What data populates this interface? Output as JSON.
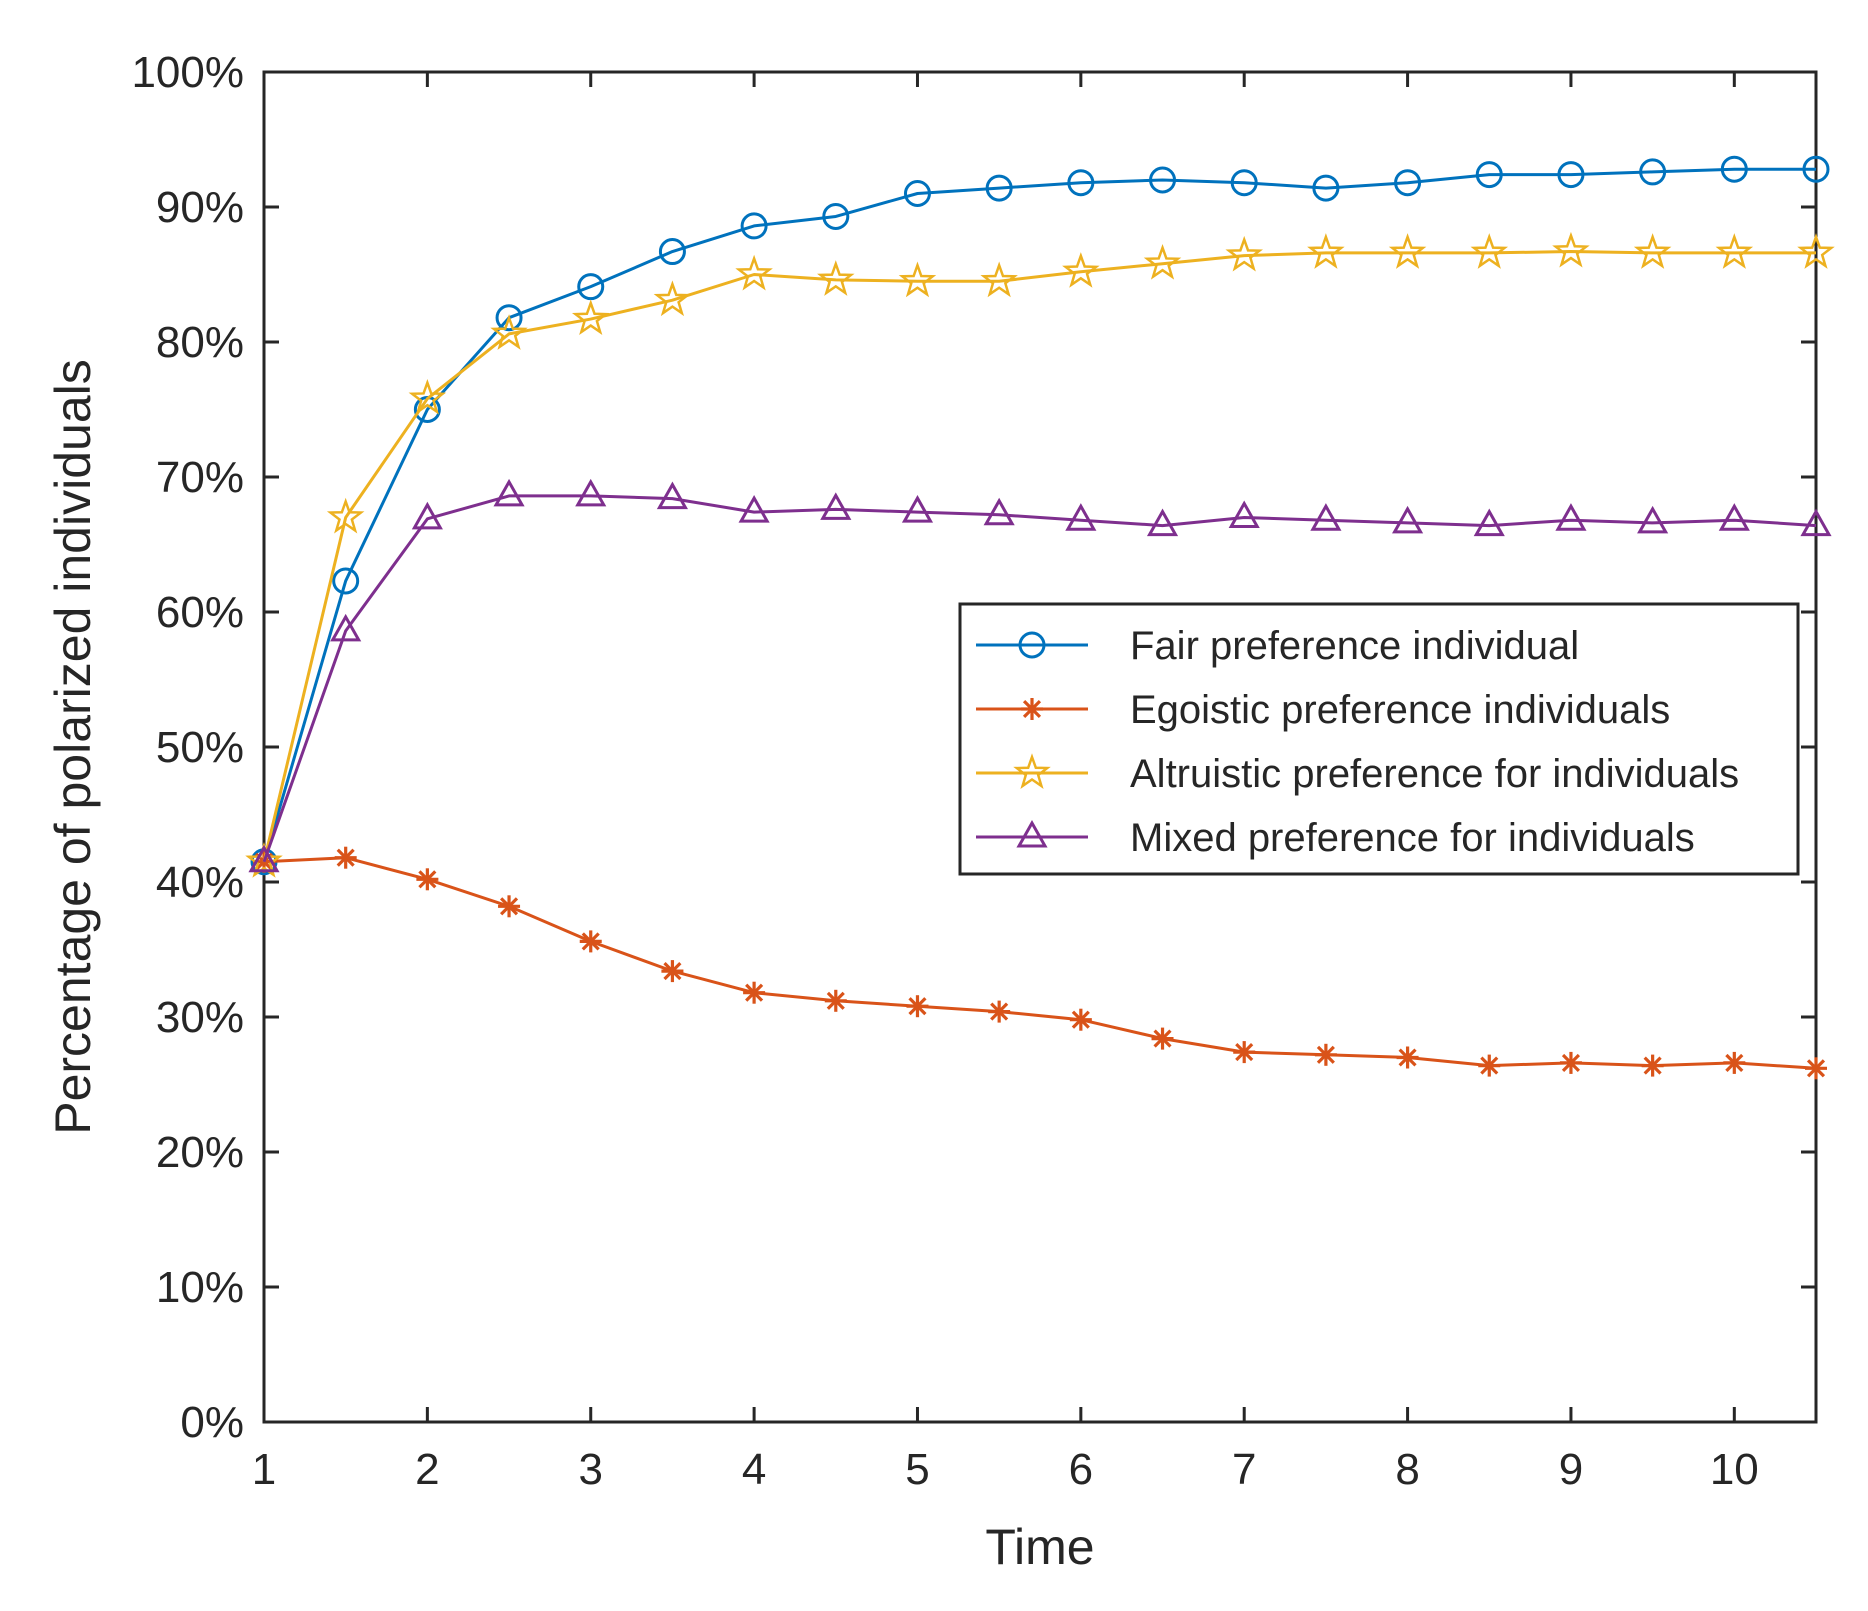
{
  "chart_data": {
    "type": "line",
    "title": "",
    "xlabel": "Time",
    "ylabel": "Percentage of polarized individuals",
    "xlim": [
      1,
      10.5
    ],
    "ylim": [
      0,
      100
    ],
    "xticks": [
      1,
      2,
      3,
      4,
      5,
      6,
      7,
      8,
      9,
      10
    ],
    "xtick_labels": [
      "1",
      "2",
      "3",
      "4",
      "5",
      "6",
      "7",
      "8",
      "9",
      "10"
    ],
    "yticks": [
      0,
      10,
      20,
      30,
      40,
      50,
      60,
      70,
      80,
      90,
      100
    ],
    "ytick_labels": [
      "0%",
      "10%",
      "20%",
      "30%",
      "40%",
      "50%",
      "60%",
      "70%",
      "80%",
      "90%",
      "100%"
    ],
    "grid": false,
    "legend_position": "center-right",
    "x": [
      1,
      1.5,
      2,
      2.5,
      3,
      3.5,
      4,
      4.5,
      5,
      5.5,
      6,
      6.5,
      7,
      7.5,
      8,
      8.5,
      9,
      9.5,
      10,
      10.5
    ],
    "series": [
      {
        "name": "Fair preference individual",
        "color": "#0072BD",
        "marker": "circle",
        "values": [
          41.5,
          62.3,
          75.0,
          81.8,
          84.1,
          86.7,
          88.6,
          89.3,
          91.0,
          91.4,
          91.8,
          92.0,
          91.8,
          91.4,
          91.8,
          92.4,
          92.4,
          92.6,
          92.8,
          92.8
        ]
      },
      {
        "name": "Egoistic preference individuals",
        "color": "#D95319",
        "marker": "asterisk",
        "values": [
          41.5,
          41.8,
          40.2,
          38.2,
          35.6,
          33.4,
          31.8,
          31.2,
          30.8,
          30.4,
          29.8,
          28.4,
          27.4,
          27.2,
          27.0,
          26.4,
          26.6,
          26.4,
          26.6,
          26.2
        ]
      },
      {
        "name": "Altruistic preference for individuals",
        "color": "#EDB120",
        "marker": "star",
        "values": [
          41.5,
          67.0,
          75.8,
          80.6,
          81.7,
          83.1,
          85.0,
          84.6,
          84.5,
          84.5,
          85.2,
          85.8,
          86.4,
          86.6,
          86.6,
          86.6,
          86.7,
          86.6,
          86.6,
          86.6
        ]
      },
      {
        "name": "Mixed preference for individuals",
        "color": "#7E2F8E",
        "marker": "triangle",
        "values": [
          41.5,
          58.6,
          66.9,
          68.6,
          68.6,
          68.4,
          67.4,
          67.6,
          67.4,
          67.2,
          66.8,
          66.4,
          67.0,
          66.8,
          66.6,
          66.4,
          66.8,
          66.6,
          66.8,
          66.4
        ]
      }
    ]
  }
}
